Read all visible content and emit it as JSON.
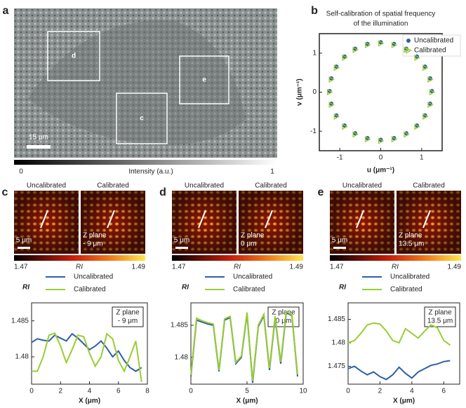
{
  "figure": {
    "panel_a": {
      "label": "a",
      "boxes": [
        "d",
        "e",
        "c"
      ],
      "scale_bar": "15 μm",
      "colorbar": {
        "min": "0",
        "label": "Intensity (a.u.)",
        "max": "1"
      }
    },
    "panel_b_label": "b",
    "insets": [
      {
        "label": "c",
        "left": "Uncalibrated",
        "right": "Calibrated",
        "scale_bar": "5 μm",
        "z_plane": "Z plane",
        "z_value": "- 9 μm",
        "colorbar": {
          "min": "1.47",
          "label": "RI",
          "max": "1.49"
        }
      },
      {
        "label": "d",
        "left": "Uncalibrated",
        "right": "Calibrated",
        "scale_bar": "5 μm",
        "z_plane": "Z plane",
        "z_value": "0 μm",
        "colorbar": {
          "min": "1.47",
          "label": "RI",
          "max": "1.49"
        }
      },
      {
        "label": "e",
        "left": "Uncalibrated",
        "right": "Calibrated",
        "scale_bar": "5 μm",
        "z_plane": "Z plane",
        "z_value": "13.5 μm",
        "colorbar": {
          "min": "1.47",
          "label": "RI",
          "max": "1.49"
        }
      }
    ]
  },
  "chart_data": [
    {
      "type": "scatter",
      "title": [
        "Self-calibration of spatial frequency",
        "of the illumination"
      ],
      "xlabel": "u (μm⁻¹)",
      "ylabel": "v (μm⁻¹)",
      "xlim": [
        -1.5,
        1.5
      ],
      "ylim": [
        -1.5,
        1.5
      ],
      "xticks": [
        -1,
        0,
        1
      ],
      "yticks": [
        -1,
        0,
        1
      ],
      "legend": "upper right",
      "series": [
        {
          "name": "Uncalibrated",
          "color": "#2f5fa6",
          "marker": "circle",
          "x": [
            1.25,
            1.207,
            1.083,
            0.884,
            0.625,
            0.324,
            0,
            -0.324,
            -0.625,
            -0.884,
            -1.083,
            -1.207,
            -1.25,
            -1.207,
            -1.083,
            -0.884,
            -0.625,
            -0.324,
            0,
            0.324,
            0.625,
            0.884,
            1.083,
            1.207
          ],
          "values": [
            0.03,
            0.354,
            0.655,
            0.914,
            1.113,
            1.237,
            1.28,
            1.237,
            1.113,
            0.914,
            0.655,
            0.354,
            0.03,
            -0.294,
            -0.595,
            -0.854,
            -1.053,
            -1.177,
            -1.22,
            -1.177,
            -1.053,
            -0.854,
            -0.595,
            -0.294
          ]
        },
        {
          "name": "Calibrated",
          "color": "#9acd32",
          "marker": "triangle",
          "x": [
            1.25,
            1.207,
            1.083,
            0.884,
            0.625,
            0.324,
            0,
            -0.324,
            -0.625,
            -0.884,
            -1.083,
            -1.207,
            -1.25,
            -1.207,
            -1.083,
            -0.884,
            -0.625,
            -0.324,
            0,
            0.324,
            0.625,
            0.884,
            1.083,
            1.207
          ],
          "values": [
            0,
            0.324,
            0.625,
            0.884,
            1.083,
            1.207,
            1.25,
            1.207,
            1.083,
            0.884,
            0.625,
            0.324,
            0,
            -0.324,
            -0.625,
            -0.884,
            -1.083,
            -1.207,
            -1.25,
            -1.207,
            -1.083,
            -0.884,
            -0.625,
            -0.324
          ]
        }
      ]
    },
    {
      "type": "line",
      "xlabel": "X (μm)",
      "ylabel": "RI",
      "annotation": [
        "Z plane",
        "- 9 μm"
      ],
      "xlim": [
        0,
        8
      ],
      "xticks": [
        0,
        2,
        4,
        6,
        8
      ],
      "ylim": [
        1.4762,
        1.4875
      ],
      "yticks": [
        1.48,
        1.485
      ],
      "x": [
        0,
        0.4,
        0.8,
        1.2,
        1.6,
        2,
        2.4,
        2.8,
        3.2,
        3.6,
        4,
        4.4,
        4.8,
        5.2,
        5.6,
        6,
        6.4,
        6.8,
        7.2,
        7.6
      ],
      "series": [
        {
          "name": "Uncalibrated",
          "color": "#2f5fa6",
          "values": [
            1.482,
            1.4825,
            1.4823,
            1.4822,
            1.483,
            1.4826,
            1.4822,
            1.4832,
            1.4826,
            1.4818,
            1.481,
            1.4815,
            1.4822,
            1.4812,
            1.48,
            1.4808,
            1.4795,
            1.4785,
            1.478,
            1.4785
          ]
        },
        {
          "name": "Calibrated",
          "color": "#9acd32",
          "values": [
            1.478,
            1.478,
            1.48,
            1.483,
            1.4833,
            1.4815,
            1.4792,
            1.481,
            1.483,
            1.4828,
            1.4805,
            1.4787,
            1.48,
            1.4832,
            1.4825,
            1.4795,
            1.478,
            1.48,
            1.4822,
            1.4765
          ]
        }
      ]
    },
    {
      "type": "line",
      "xlabel": "X (μm)",
      "ylabel": "RI",
      "annotation": [
        "Z plane",
        "0 μm"
      ],
      "xlim": [
        0,
        10
      ],
      "xticks": [
        0,
        5,
        10
      ],
      "ylim": [
        1.4758,
        1.4885
      ],
      "yticks": [
        1.48,
        1.485
      ],
      "x": [
        0,
        0.5,
        1,
        1.5,
        2,
        2.5,
        3,
        3.5,
        4,
        4.5,
        5,
        5.5,
        6,
        6.5,
        7,
        7.5,
        8,
        8.5,
        9,
        9.5
      ],
      "series": [
        {
          "name": "Uncalibrated",
          "color": "#2f5fa6",
          "values": [
            1.477,
            1.4858,
            1.4855,
            1.4852,
            1.485,
            1.4778,
            1.4858,
            1.4862,
            1.479,
            1.48,
            1.4868,
            1.476,
            1.4848,
            1.4865,
            1.478,
            1.4862,
            1.479,
            1.487,
            1.4865,
            1.477
          ]
        },
        {
          "name": "Calibrated",
          "color": "#9acd32",
          "values": [
            1.4772,
            1.4861,
            1.4857,
            1.4854,
            1.4852,
            1.478,
            1.486,
            1.4864,
            1.4792,
            1.4802,
            1.487,
            1.4763,
            1.485,
            1.4867,
            1.4783,
            1.4864,
            1.4793,
            1.4872,
            1.4866,
            1.4773
          ]
        }
      ]
    },
    {
      "type": "line",
      "xlabel": "X (μm)",
      "ylabel": "RI",
      "annotation": [
        "Z plane",
        "13.5 μm"
      ],
      "xlim": [
        0,
        7
      ],
      "xticks": [
        0,
        2,
        4,
        6
      ],
      "ylim": [
        1.4712,
        1.4885
      ],
      "yticks": [
        1.475,
        1.48,
        1.485
      ],
      "x": [
        0,
        0.4,
        0.8,
        1.2,
        1.6,
        2,
        2.4,
        2.8,
        3.2,
        3.6,
        4,
        4.4,
        4.8,
        5.2,
        5.6,
        6,
        6.4
      ],
      "series": [
        {
          "name": "Uncalibrated",
          "color": "#2f5fa6",
          "values": [
            1.4745,
            1.475,
            1.474,
            1.4732,
            1.4738,
            1.4728,
            1.4722,
            1.4732,
            1.4748,
            1.4735,
            1.4725,
            1.4738,
            1.4745,
            1.4752,
            1.4755,
            1.476,
            1.4762
          ]
        },
        {
          "name": "Calibrated",
          "color": "#9acd32",
          "values": [
            1.48,
            1.4805,
            1.482,
            1.4838,
            1.4842,
            1.484,
            1.4825,
            1.4805,
            1.48,
            1.483,
            1.482,
            1.481,
            1.4825,
            1.4838,
            1.4832,
            1.4805,
            1.4795
          ]
        }
      ]
    }
  ]
}
